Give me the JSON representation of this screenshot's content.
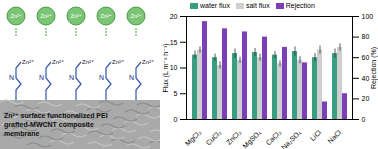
{
  "chart_data": {
    "type": "bar",
    "ylabel": "Flux (L m⁻² h⁻¹)",
    "y2label": "Rejection (%)",
    "categories": [
      "MgCl₂",
      "CuCl₂",
      "ZnCl₂",
      "MgSO₄",
      "CaCl₂",
      "Na₂SO₄",
      "LiCl",
      "NaCl"
    ],
    "series": [
      {
        "name": "water flux",
        "color": "#3a9e80",
        "values": [
          12.5,
          12.0,
          12.8,
          13.0,
          12.5,
          13.2,
          12.0,
          12.8
        ],
        "errors": [
          0.8,
          0.7,
          0.9,
          0.8,
          0.7,
          0.9,
          0.8,
          0.9
        ]
      },
      {
        "name": "salt flux",
        "color": "#cfcfcf",
        "values": [
          13.5,
          10.5,
          11.5,
          12.0,
          10.8,
          11.5,
          13.5,
          14.0
        ],
        "errors": [
          0.6,
          0.7,
          0.6,
          0.7,
          0.6,
          0.7,
          0.8,
          0.7
        ]
      },
      {
        "name": "Rejection",
        "color": "#7b3fb6",
        "values": [
          95,
          88,
          85,
          80,
          70,
          55,
          17,
          25
        ],
        "axis": "y2"
      }
    ],
    "ylim": [
      0,
      20
    ],
    "yticks": [
      0,
      5,
      10,
      15,
      20
    ],
    "y2lim": [
      0,
      100
    ],
    "y2ticks": [
      0,
      20,
      40,
      60,
      80,
      100
    ],
    "legend": "top"
  },
  "diagram": {
    "ion_label": "Zn²⁺",
    "amine_label": "N",
    "ion_count": 5,
    "caption": [
      "Zn²⁺ surface functionalized PEI",
      "grafted-MWCNT composite",
      "membrane"
    ]
  }
}
